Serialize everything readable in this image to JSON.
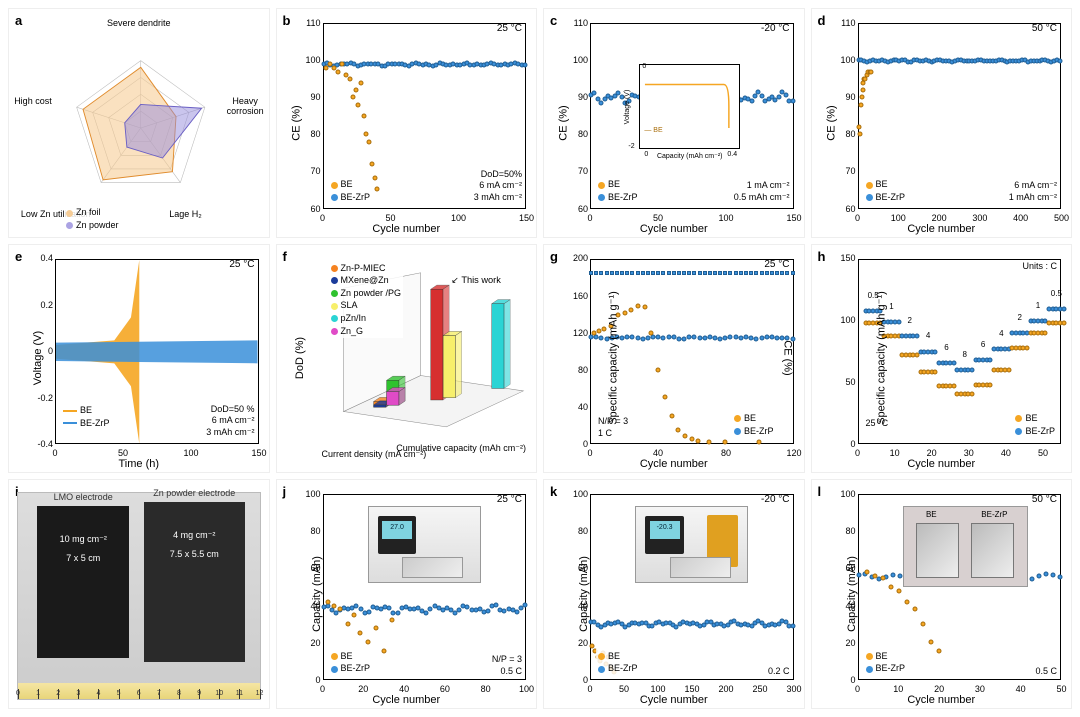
{
  "colors": {
    "be": "#f5a623",
    "be_border": "#a86d0a",
    "zrp": "#3a8fd9",
    "zrp_border": "#1f5e94",
    "radar_foil_fill": "rgba(245,200,140,0.55)",
    "radar_powder_fill": "rgba(150,140,220,0.5)",
    "grid": "#e0e0e0"
  },
  "panels": {
    "a": {
      "label": "a",
      "verts": [
        "Severe dendrite",
        "Heavy corrosion",
        "Lage H₂",
        "Low Zn utilization",
        "High cost"
      ],
      "legend": [
        {
          "name": "Zn foil",
          "color": "rgba(245,200,140,0.9)"
        },
        {
          "name": "Zn powder",
          "color": "rgba(150,140,220,0.8)"
        }
      ],
      "foil": [
        0.9,
        0.55,
        0.8,
        0.95,
        0.9
      ],
      "powder": [
        0.35,
        0.95,
        0.55,
        0.35,
        0.25
      ]
    },
    "b": {
      "label": "b",
      "temp": "25 °C",
      "xlabel": "Cycle number",
      "ylabel": "CE (%)",
      "xlim": [
        0,
        150
      ],
      "xticks": [
        0,
        50,
        100,
        150
      ],
      "ylim": [
        60,
        110
      ],
      "yticks": [
        60,
        70,
        80,
        90,
        100,
        110
      ],
      "annots": [
        "DoD=50%",
        "6 mA cm⁻²",
        "3 mAh cm⁻²"
      ],
      "legend": [
        {
          "name": "BE",
          "key": "be"
        },
        {
          "name": "BE-ZrP",
          "key": "zrp"
        }
      ],
      "series": {
        "zrp": {
          "y": 99,
          "jitter": 0.5,
          "n": 60,
          "xmax": 150
        },
        "be_custom": [
          [
            2,
            98
          ],
          [
            5,
            99
          ],
          [
            8,
            98
          ],
          [
            11,
            97
          ],
          [
            14,
            99
          ],
          [
            17,
            96
          ],
          [
            20,
            95
          ],
          [
            22,
            90
          ],
          [
            24,
            92
          ],
          [
            26,
            88
          ],
          [
            28,
            94
          ],
          [
            30,
            85
          ],
          [
            32,
            80
          ],
          [
            34,
            78
          ],
          [
            36,
            72
          ],
          [
            38,
            68
          ],
          [
            40,
            65
          ]
        ]
      }
    },
    "c": {
      "label": "c",
      "temp": "-20 °C",
      "xlabel": "Cycle number",
      "ylabel": "CE (%)",
      "xlim": [
        0,
        150
      ],
      "xticks": [
        0,
        50,
        100,
        150
      ],
      "ylim": [
        60,
        110
      ],
      "yticks": [
        60,
        70,
        80,
        90,
        100,
        110
      ],
      "annots": [
        "1 mA cm⁻²",
        "0.5 mAh cm⁻²"
      ],
      "legend": [
        {
          "name": "BE",
          "key": "be"
        },
        {
          "name": "BE-ZrP",
          "key": "zrp"
        }
      ],
      "series": {
        "zrp": {
          "y": 90,
          "jitter": 2,
          "n": 60,
          "xmax": 150
        }
      },
      "inset": {
        "xlabel": "Capacity (mAh cm⁻²)",
        "ylabel": "Voltage (V)",
        "xrange": [
          0,
          0.5
        ],
        "yrange": [
          -2,
          0
        ],
        "series": "BE"
      }
    },
    "d": {
      "label": "d",
      "temp": "50 °C",
      "xlabel": "Cycle number",
      "ylabel": "CE (%)",
      "xlim": [
        0,
        500
      ],
      "xticks": [
        0,
        100,
        200,
        300,
        400,
        500
      ],
      "ylim": [
        60,
        110
      ],
      "yticks": [
        60,
        70,
        80,
        90,
        100,
        110
      ],
      "annots": [
        "6 mA cm⁻²",
        "1 mAh cm⁻²"
      ],
      "legend": [
        {
          "name": "BE",
          "key": "be"
        },
        {
          "name": "BE-ZrP",
          "key": "zrp"
        }
      ],
      "series": {
        "zrp": {
          "y": 100,
          "jitter": 0.4,
          "n": 70,
          "xmax": 500
        },
        "be_custom": [
          [
            2,
            82
          ],
          [
            4,
            80
          ],
          [
            6,
            88
          ],
          [
            8,
            90
          ],
          [
            10,
            92
          ],
          [
            12,
            94
          ],
          [
            14,
            95
          ],
          [
            16,
            95
          ],
          [
            20,
            96
          ],
          [
            24,
            97
          ],
          [
            28,
            97
          ],
          [
            32,
            97
          ]
        ]
      }
    },
    "e": {
      "label": "e",
      "temp": "25 °C",
      "xlabel": "Time (h)",
      "ylabel": "Voltage (V)",
      "xlim": [
        0,
        150
      ],
      "xticks": [
        0,
        50,
        100,
        150
      ],
      "ylim": [
        -0.4,
        0.4
      ],
      "yticks": [
        -0.4,
        -0.2,
        0,
        0.2,
        0.4
      ],
      "annots": [
        "DoD=50 %",
        "6 mA cm⁻²",
        "3 mAh cm⁻²"
      ],
      "legend": [
        {
          "name": "BE",
          "key": "be"
        },
        {
          "name": "BE-ZrP",
          "key": "zrp"
        }
      ],
      "be_fail_h": 62
    },
    "f": {
      "label": "f",
      "ylabel": "DoD (%)",
      "xlabel1": "Current density (mA cm⁻²)",
      "xlabel2": "Cumulative capacity (mAh cm⁻²)",
      "legend_items": [
        {
          "name": "Zn-P-MIEC",
          "color": "#f58220"
        },
        {
          "name": "MXene@Zn",
          "color": "#1b3c9b"
        },
        {
          "name": "Zn powder /PG",
          "color": "#2fc22f"
        },
        {
          "name": "SLA",
          "color": "#f7ef6b"
        },
        {
          "name": "pZn/In",
          "color": "#2ad4d4"
        },
        {
          "name": "Zn_G",
          "color": "#e04bc7"
        }
      ],
      "bars": [
        {
          "x": 0.1,
          "z": 0.15,
          "h": 0.05,
          "color": "#f58220"
        },
        {
          "x": 0.1,
          "z": 0.15,
          "h": 0.02,
          "color": "#1b3c9b"
        },
        {
          "x": 0.18,
          "z": 0.22,
          "h": 0.22,
          "color": "#2fc22f"
        },
        {
          "x": 0.18,
          "z": 0.22,
          "h": 0.12,
          "color": "#e04bc7"
        },
        {
          "x": 0.48,
          "z": 0.4,
          "h": 0.98,
          "color": "#d62f2f",
          "label": "This work"
        },
        {
          "x": 0.55,
          "z": 0.48,
          "h": 0.55,
          "color": "#f7ef6b"
        },
        {
          "x": 0.82,
          "z": 0.8,
          "h": 0.75,
          "color": "#2ad4d4"
        }
      ],
      "xticks": [
        0,
        3,
        6,
        9
      ],
      "zticks": [
        200,
        600,
        1000,
        1400
      ]
    },
    "g": {
      "label": "g",
      "xlabel": "Cycle number",
      "ylabel": "Specific capacity (mAh g⁻¹)",
      "ylabel2": "CE (%)",
      "xlim": [
        0,
        120
      ],
      "xticks": [
        0,
        40,
        80,
        120
      ],
      "ylim": [
        0,
        200
      ],
      "ylim2": [
        0,
        100
      ],
      "yticks": [
        0,
        40,
        80,
        120,
        160,
        200
      ],
      "annots_left": [
        "N/P = 3",
        "1 C"
      ],
      "temp": "25 °C",
      "legend": [
        {
          "name": "BE",
          "key": "be"
        },
        {
          "name": "BE-ZrP",
          "key": "zrp"
        }
      ],
      "zrp_cap": {
        "y": 115,
        "jitter": 2,
        "n": 40,
        "xmax": 120
      },
      "zrp_ce": {
        "y": 185,
        "jitter": 1,
        "n": 40,
        "xmax": 120
      },
      "be_custom": [
        [
          2,
          120
        ],
        [
          5,
          122
        ],
        [
          8,
          125
        ],
        [
          12,
          128
        ],
        [
          16,
          140
        ],
        [
          20,
          142
        ],
        [
          24,
          145
        ],
        [
          28,
          150
        ],
        [
          32,
          148
        ],
        [
          36,
          120
        ],
        [
          40,
          80
        ],
        [
          44,
          50
        ],
        [
          48,
          30
        ],
        [
          52,
          15
        ],
        [
          56,
          8
        ],
        [
          60,
          5
        ],
        [
          64,
          3
        ],
        [
          70,
          2
        ],
        [
          80,
          2
        ],
        [
          100,
          2
        ]
      ]
    },
    "h": {
      "label": "h",
      "xlabel": "Cycle number",
      "ylabel": "Specific capacity (mAh g⁻¹)",
      "xlim": [
        0,
        55
      ],
      "xticks": [
        0,
        10,
        20,
        30,
        40,
        50
      ],
      "ylim": [
        0,
        150
      ],
      "yticks": [
        0,
        50,
        100,
        150
      ],
      "units_label": "Units : C",
      "temp": "25 °C",
      "rates": [
        {
          "x": 2,
          "r": "0.5"
        },
        {
          "x": 7,
          "r": "1"
        },
        {
          "x": 12,
          "r": "2"
        },
        {
          "x": 17,
          "r": "4"
        },
        {
          "x": 22,
          "r": "6"
        },
        {
          "x": 27,
          "r": "8"
        },
        {
          "x": 32,
          "r": "6"
        },
        {
          "x": 37,
          "r": "4"
        },
        {
          "x": 42,
          "r": "2"
        },
        {
          "x": 47,
          "r": "1"
        },
        {
          "x": 52,
          "r": "0.5"
        }
      ],
      "zrp_vals": [
        108,
        99,
        88,
        75,
        66,
        60,
        68,
        77,
        90,
        100,
        110
      ],
      "be_vals": [
        98,
        88,
        72,
        58,
        47,
        40,
        48,
        60,
        78,
        90,
        98
      ],
      "legend": [
        {
          "name": "BE",
          "key": "be"
        },
        {
          "name": "BE-ZrP",
          "key": "zrp"
        }
      ]
    },
    "i": {
      "label": "i",
      "left_title": "LMO electrode",
      "right_title": "Zn powder electrode",
      "left_lines": [
        "10 mg cm⁻²",
        "7 x 5 cm"
      ],
      "right_lines": [
        "4 mg cm⁻²",
        "7.5 x 5.5 cm"
      ],
      "ruler_max": 12
    },
    "j": {
      "label": "j",
      "temp": "25 °C",
      "xlabel": "Cycle number",
      "ylabel": "Capacity (mAh)",
      "xlim": [
        0,
        100
      ],
      "xticks": [
        0,
        20,
        40,
        60,
        80,
        100
      ],
      "ylim": [
        0,
        100
      ],
      "yticks": [
        0,
        20,
        40,
        60,
        80,
        100
      ],
      "annots": [
        "N/P = 3",
        "0.5 C"
      ],
      "legend": [
        {
          "name": "BE",
          "key": "be"
        },
        {
          "name": "BE-ZrP",
          "key": "zrp"
        }
      ],
      "zrp": {
        "y": 38,
        "jitter": 3,
        "n": 50,
        "xmax": 100
      },
      "be_custom": [
        [
          2,
          42
        ],
        [
          5,
          40
        ],
        [
          8,
          38
        ],
        [
          12,
          30
        ],
        [
          15,
          35
        ],
        [
          18,
          25
        ],
        [
          22,
          20
        ],
        [
          26,
          28
        ],
        [
          30,
          15
        ],
        [
          34,
          32
        ]
      ],
      "inset_desc": "clock-device"
    },
    "k": {
      "label": "k",
      "temp": "-20 °C",
      "xlabel": "Cycle number",
      "ylabel": "Capacity (mAh)",
      "xlim": [
        0,
        300
      ],
      "xticks": [
        0,
        50,
        100,
        150,
        200,
        250,
        300
      ],
      "ylim": [
        0,
        100
      ],
      "yticks": [
        0,
        20,
        40,
        60,
        80,
        100
      ],
      "annots": [
        "0.2 C"
      ],
      "legend": [
        {
          "name": "BE",
          "key": "be"
        },
        {
          "name": "BE-ZrP",
          "key": "zrp"
        }
      ],
      "zrp": {
        "y": 30,
        "jitter": 2,
        "n": 60,
        "xmax": 300
      },
      "be_custom": [
        [
          2,
          18
        ],
        [
          6,
          15
        ],
        [
          10,
          12
        ],
        [
          14,
          10
        ],
        [
          18,
          14
        ],
        [
          22,
          8
        ],
        [
          26,
          12
        ],
        [
          30,
          6
        ],
        [
          34,
          4
        ]
      ],
      "inset_desc": "multimeter-device"
    },
    "l": {
      "label": "l",
      "temp": "50 °C",
      "xlabel": "Cycle number",
      "ylabel": "Capacity (mAh)",
      "xlim": [
        0,
        50
      ],
      "xticks": [
        0,
        10,
        20,
        30,
        40,
        50
      ],
      "ylim": [
        0,
        100
      ],
      "yticks": [
        0,
        20,
        40,
        60,
        80,
        100
      ],
      "annots": [
        "0.5 C"
      ],
      "legend": [
        {
          "name": "BE",
          "key": "be"
        },
        {
          "name": "BE-ZrP",
          "key": "zrp"
        }
      ],
      "zrp": {
        "y": 56,
        "jitter": 2,
        "n": 30,
        "xmax": 50
      },
      "be_custom": [
        [
          2,
          58
        ],
        [
          4,
          56
        ],
        [
          6,
          55
        ],
        [
          8,
          50
        ],
        [
          10,
          48
        ],
        [
          12,
          42
        ],
        [
          14,
          38
        ],
        [
          16,
          30
        ],
        [
          18,
          20
        ],
        [
          20,
          15
        ]
      ],
      "inset_labels": [
        "BE",
        "BE-ZrP"
      ]
    }
  }
}
